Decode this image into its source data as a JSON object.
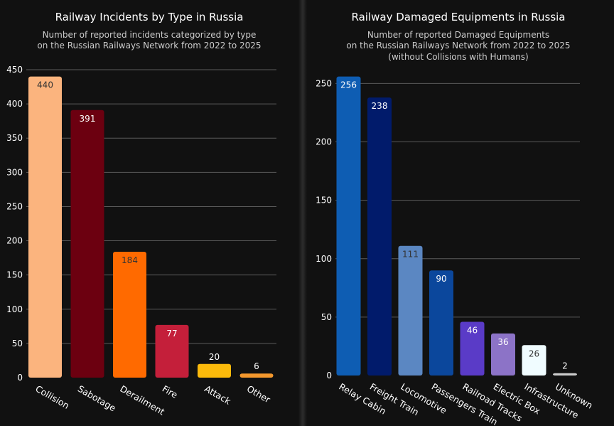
{
  "chart_data": [
    {
      "type": "bar",
      "title": "Railway Incidents by Type in Russia",
      "subtitle": [
        "Number of reported incidents categorized by type",
        "on the Russian Railways Network from 2022 to 2025"
      ],
      "categories": [
        "Collision",
        "Sabotage",
        "Derailment",
        "Fire",
        "Attack",
        "Other"
      ],
      "values": [
        440,
        391,
        184,
        77,
        20,
        6
      ],
      "colors": [
        "#fbb47e",
        "#6c0010",
        "#ff6a00",
        "#c41f3a",
        "#fbba0b",
        "#f4982d"
      ],
      "label_colors": [
        "#333333",
        "#ffffff",
        "#333333",
        "#ffffff",
        "#ffffff",
        "#ffffff"
      ],
      "label_inside": [
        true,
        true,
        true,
        true,
        false,
        false
      ],
      "ylim": [
        0,
        450
      ],
      "yticks": [
        0,
        50,
        100,
        150,
        200,
        250,
        300,
        350,
        400,
        450
      ],
      "grid": true,
      "xlabel": "",
      "ylabel": ""
    },
    {
      "type": "bar",
      "title": "Railway Damaged Equipments in Russia",
      "subtitle": [
        "Number of reported Damaged Equipments",
        "on the Russian Railways Network from 2022 to 2025",
        "(without Collisions with Humans)"
      ],
      "categories": [
        "Relay Cabin",
        "Freight Train",
        "Locomotive",
        "Passengers Train",
        "Railroad Tracks",
        "Electric Box",
        "Infrastructure",
        "Unknown"
      ],
      "values": [
        256,
        238,
        111,
        90,
        46,
        36,
        26,
        2
      ],
      "colors": [
        "#0e5db3",
        "#011b6b",
        "#5b87c2",
        "#0b479c",
        "#5a3bc7",
        "#8c73c7",
        "#f0fcff",
        "#cccccc"
      ],
      "label_colors": [
        "#ffffff",
        "#ffffff",
        "#333333",
        "#ffffff",
        "#ffffff",
        "#ffffff",
        "#333333",
        "#ffffff"
      ],
      "label_inside": [
        true,
        true,
        true,
        true,
        true,
        true,
        true,
        false
      ],
      "ylim": [
        0,
        260
      ],
      "yticks": [
        0,
        50,
        100,
        150,
        200,
        250
      ],
      "grid": true,
      "xlabel": "",
      "ylabel": ""
    }
  ]
}
